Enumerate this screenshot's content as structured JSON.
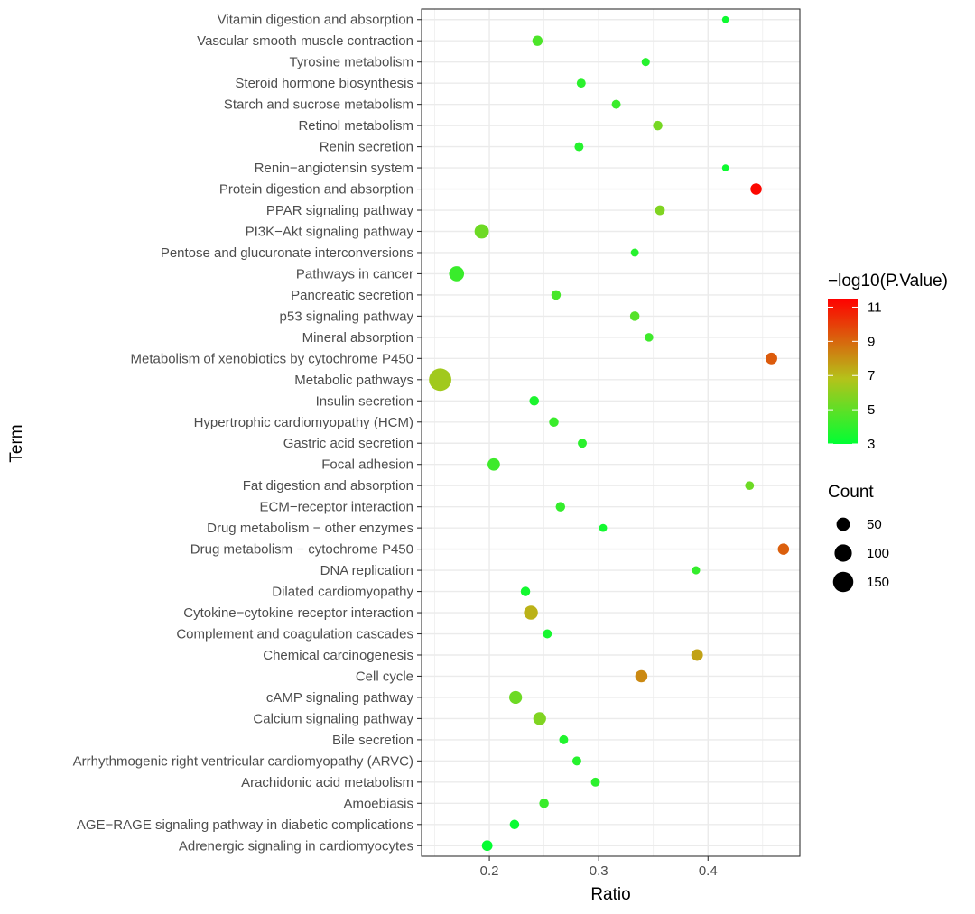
{
  "chart_data": {
    "type": "scatter",
    "xlabel": "Ratio",
    "ylabel": "Term",
    "xlim": [
      0.138,
      0.484
    ],
    "xticks": [
      0.2,
      0.3,
      0.4
    ],
    "xtick_labels": [
      "0.2",
      "0.3",
      "0.4"
    ],
    "grid": true,
    "points": [
      {
        "term": "Vitamin digestion and absorption",
        "ratio": 0.416,
        "count": 5,
        "neglog10p": 3.3
      },
      {
        "term": "Vascular smooth muscle contraction",
        "ratio": 0.244,
        "count": 22,
        "neglog10p": 4.6
      },
      {
        "term": "Tyrosine metabolism",
        "ratio": 0.343,
        "count": 10,
        "neglog10p": 3.8
      },
      {
        "term": "Steroid hormone biosynthesis",
        "ratio": 0.284,
        "count": 14,
        "neglog10p": 3.9
      },
      {
        "term": "Starch and sucrose metabolism",
        "ratio": 0.316,
        "count": 14,
        "neglog10p": 4.2
      },
      {
        "term": "Retinol metabolism",
        "ratio": 0.354,
        "count": 17,
        "neglog10p": 5.5
      },
      {
        "term": "Renin secretion",
        "ratio": 0.282,
        "count": 14,
        "neglog10p": 3.8
      },
      {
        "term": "Renin−angiotensin system",
        "ratio": 0.416,
        "count": 5,
        "neglog10p": 3.3
      },
      {
        "term": "Protein digestion and absorption",
        "ratio": 0.444,
        "count": 30,
        "neglog10p": 11.3
      },
      {
        "term": "PPAR signaling pathway",
        "ratio": 0.356,
        "count": 19,
        "neglog10p": 5.7
      },
      {
        "term": "PI3K−Akt signaling pathway",
        "ratio": 0.193,
        "count": 60,
        "neglog10p": 5.3
      },
      {
        "term": "Pentose and glucuronate interconversions",
        "ratio": 0.333,
        "count": 9,
        "neglog10p": 3.8
      },
      {
        "term": "Pathways in cancer",
        "ratio": 0.17,
        "count": 68,
        "neglog10p": 4.2
      },
      {
        "term": "Pancreatic secretion",
        "ratio": 0.261,
        "count": 17,
        "neglog10p": 4.5
      },
      {
        "term": "p53 signaling pathway",
        "ratio": 0.333,
        "count": 17,
        "neglog10p": 4.8
      },
      {
        "term": "Mineral absorption",
        "ratio": 0.346,
        "count": 12,
        "neglog10p": 4.3
      },
      {
        "term": "Metabolism of xenobiotics by cytochrome P450",
        "ratio": 0.458,
        "count": 33,
        "neglog10p": 9.3
      },
      {
        "term": "Metabolic pathways",
        "ratio": 0.155,
        "count": 190,
        "neglog10p": 6.4
      },
      {
        "term": "Insulin secretion",
        "ratio": 0.241,
        "count": 17,
        "neglog10p": 3.6
      },
      {
        "term": "Hypertrophic cardiomyopathy (HCM)",
        "ratio": 0.259,
        "count": 17,
        "neglog10p": 4.2
      },
      {
        "term": "Gastric acid secretion",
        "ratio": 0.285,
        "count": 14,
        "neglog10p": 3.9
      },
      {
        "term": "Focal adhesion",
        "ratio": 0.204,
        "count": 40,
        "neglog10p": 4.3
      },
      {
        "term": "Fat digestion and absorption",
        "ratio": 0.438,
        "count": 13,
        "neglog10p": 5.3
      },
      {
        "term": "ECM−receptor interaction",
        "ratio": 0.265,
        "count": 17,
        "neglog10p": 4.1
      },
      {
        "term": "Drug metabolism − other enzymes",
        "ratio": 0.304,
        "count": 9,
        "neglog10p": 3.4
      },
      {
        "term": "Drug metabolism − cytochrome P450",
        "ratio": 0.469,
        "count": 30,
        "neglog10p": 9.2
      },
      {
        "term": "DNA replication",
        "ratio": 0.389,
        "count": 10,
        "neglog10p": 4.1
      },
      {
        "term": "Dilated cardiomyopathy",
        "ratio": 0.233,
        "count": 17,
        "neglog10p": 3.4
      },
      {
        "term": "Cytokine−cytokine receptor interaction",
        "ratio": 0.238,
        "count": 56,
        "neglog10p": 7.2
      },
      {
        "term": "Complement and coagulation cascades",
        "ratio": 0.253,
        "count": 14,
        "neglog10p": 3.5
      },
      {
        "term": "Chemical carcinogenesis",
        "ratio": 0.39,
        "count": 33,
        "neglog10p": 7.6
      },
      {
        "term": "Cell cycle",
        "ratio": 0.339,
        "count": 38,
        "neglog10p": 8.2
      },
      {
        "term": "cAMP signaling pathway",
        "ratio": 0.224,
        "count": 44,
        "neglog10p": 5.3
      },
      {
        "term": "Calcium signaling pathway",
        "ratio": 0.246,
        "count": 44,
        "neglog10p": 5.7
      },
      {
        "term": "Bile secretion",
        "ratio": 0.268,
        "count": 14,
        "neglog10p": 3.7
      },
      {
        "term": "Arrhythmogenic right ventricular cardiomyopathy (ARVC)",
        "ratio": 0.28,
        "count": 14,
        "neglog10p": 3.8
      },
      {
        "term": "Arachidonic acid metabolism",
        "ratio": 0.297,
        "count": 14,
        "neglog10p": 3.9
      },
      {
        "term": "Amoebiasis",
        "ratio": 0.25,
        "count": 17,
        "neglog10p": 4.2
      },
      {
        "term": "AGE−RAGE signaling pathway in diabetic complications",
        "ratio": 0.223,
        "count": 17,
        "neglog10p": 3.2
      },
      {
        "term": "Adrenergic signaling in cardiomyocytes",
        "ratio": 0.198,
        "count": 25,
        "neglog10p": 3.1
      }
    ],
    "color_legend": {
      "title": "−log10(P.Value)",
      "min": 3,
      "max": 11.5,
      "ticks": [
        11,
        9,
        7,
        5,
        3
      ],
      "tick_labels": [
        "11",
        "9",
        "7",
        "5",
        "3"
      ],
      "low_color": "#00ff33",
      "mid_color": "#b5c21a",
      "high_color": "#ff0000"
    },
    "size_legend": {
      "title": "Count",
      "values": [
        50,
        100,
        150
      ],
      "labels": [
        "50",
        "100",
        "150"
      ],
      "color": "#000000"
    },
    "background_color": "#ffffff",
    "grid_color": "#ebebeb",
    "panel_border_color": "#333333"
  }
}
